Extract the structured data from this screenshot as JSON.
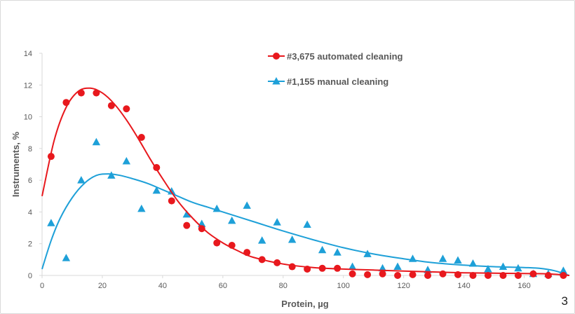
{
  "slide": {
    "number": "3"
  },
  "colors": {
    "automated": "#e8181d",
    "manual": "#1ea0d8",
    "axis": "#d9d9d9",
    "text": "#595959"
  },
  "chart_data": {
    "type": "scatter",
    "title": "",
    "xlabel": "Protein, µg",
    "ylabel": "Instruments, %",
    "xlim": [
      0,
      175
    ],
    "ylim": [
      0,
      14
    ],
    "xticks": [
      0,
      20,
      40,
      60,
      80,
      100,
      120,
      140,
      160
    ],
    "yticks": [
      0,
      2,
      4,
      6,
      8,
      10,
      12,
      14
    ],
    "grid": false,
    "legend": "top-center",
    "series": [
      {
        "name": "#3,675 automated cleaning",
        "marker": "circle",
        "color": "#e8181d",
        "x": [
          3,
          8,
          13,
          18,
          23,
          28,
          33,
          38,
          43,
          48,
          53,
          58,
          63,
          68,
          73,
          78,
          83,
          88,
          93,
          98,
          103,
          108,
          113,
          118,
          123,
          128,
          133,
          138,
          143,
          148,
          153,
          158,
          163,
          168,
          173
        ],
        "y": [
          7.5,
          10.9,
          11.5,
          11.5,
          10.7,
          10.5,
          8.7,
          6.8,
          4.7,
          3.15,
          2.95,
          2.05,
          1.9,
          1.45,
          1.0,
          0.8,
          0.55,
          0.4,
          0.45,
          0.45,
          0.1,
          0.05,
          0.1,
          0.0,
          0.05,
          0.0,
          0.1,
          0.05,
          0.0,
          0.0,
          0.0,
          0.0,
          0.1,
          0.0,
          0.0
        ],
        "trend_x": [
          0,
          4,
          8,
          12,
          16,
          20,
          24,
          28,
          32,
          36,
          40,
          45,
          50,
          55,
          60,
          65,
          70,
          80,
          90,
          100,
          110,
          120,
          130,
          140,
          150,
          160,
          168,
          175
        ],
        "trend_y": [
          5.0,
          8.5,
          10.6,
          11.6,
          11.8,
          11.5,
          10.8,
          9.8,
          8.6,
          7.3,
          6.1,
          4.7,
          3.6,
          2.7,
          2.05,
          1.55,
          1.15,
          0.72,
          0.5,
          0.4,
          0.34,
          0.28,
          0.22,
          0.17,
          0.14,
          0.12,
          0.1,
          0.0
        ]
      },
      {
        "name": "#1,155 manual cleaning",
        "marker": "triangle",
        "color": "#1ea0d8",
        "x": [
          3,
          8,
          13,
          18,
          23,
          28,
          33,
          38,
          43,
          48,
          53,
          58,
          63,
          68,
          73,
          78,
          83,
          88,
          93,
          98,
          103,
          108,
          113,
          118,
          123,
          128,
          133,
          138,
          143,
          148,
          153,
          158,
          163,
          168,
          173
        ],
        "y": [
          3.3,
          1.1,
          6.0,
          8.4,
          6.3,
          7.2,
          4.2,
          5.35,
          5.3,
          3.85,
          3.25,
          4.2,
          3.45,
          4.4,
          2.2,
          3.35,
          2.25,
          3.2,
          1.6,
          1.45,
          0.55,
          1.35,
          0.45,
          0.55,
          1.05,
          0.35,
          1.05,
          0.95,
          0.75,
          0.4,
          0.55,
          0.45,
          0.1,
          0.1,
          0.3
        ],
        "trend_x": [
          0,
          3,
          6,
          10,
          14,
          18,
          22,
          26,
          30,
          35,
          40,
          45,
          50,
          55,
          60,
          70,
          80,
          90,
          100,
          110,
          120,
          130,
          140,
          150,
          160,
          165,
          170,
          175
        ],
        "trend_y": [
          0.4,
          2.2,
          3.6,
          4.9,
          5.8,
          6.3,
          6.4,
          6.3,
          6.1,
          5.8,
          5.4,
          5.0,
          4.6,
          4.3,
          4.0,
          3.4,
          2.8,
          2.25,
          1.75,
          1.35,
          1.05,
          0.8,
          0.65,
          0.55,
          0.5,
          0.45,
          0.3,
          0.0
        ]
      }
    ]
  }
}
